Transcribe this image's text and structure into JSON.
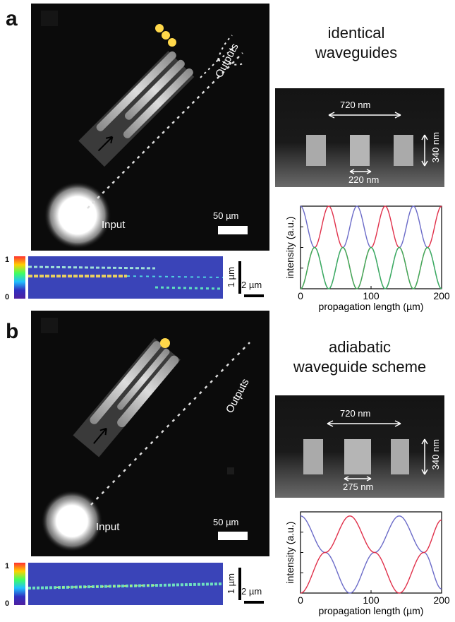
{
  "panel_a": {
    "letter": "a",
    "title_line1": "identical",
    "title_line2": "waveguides",
    "input_label": "Input",
    "outputs_label": "Outputs",
    "scale_micro": "50 µm",
    "sem_width": "720 nm",
    "sem_height": "340 nm",
    "sem_gap": "220 nm",
    "colorbar_max": "1",
    "colorbar_min": "0",
    "heat_scale_v": "1 µm",
    "heat_scale_h": "2 µm"
  },
  "panel_b": {
    "letter": "b",
    "title_line1": "adiabatic",
    "title_line2": "waveguide scheme",
    "input_label": "Input",
    "outputs_label": "Outputs",
    "scale_micro": "50 µm",
    "sem_width": "720 nm",
    "sem_height": "340 nm",
    "sem_gap": "275 nm",
    "colorbar_max": "1",
    "colorbar_min": "0",
    "heat_scale_v": "1 µm",
    "heat_scale_h": "2 µm"
  },
  "colors": {
    "blue": "#6b6bc8",
    "red": "#e0304a",
    "green": "#39b05a"
  },
  "chart_data": [
    {
      "type": "line",
      "xlabel": "propagation length (µm)",
      "ylabel": "intensity (a.u.)",
      "xlim": [
        0,
        200
      ],
      "ylim": [
        0,
        1
      ],
      "xticks": [
        "0",
        "100",
        "200"
      ],
      "series": [
        {
          "color": "blue",
          "x": [
            0,
            20,
            40,
            60,
            80,
            100,
            120,
            140,
            160,
            180,
            200
          ],
          "y": [
            1.0,
            0.5,
            0.0,
            0.5,
            1.0,
            0.5,
            0.0,
            0.5,
            1.0,
            0.5,
            0.0
          ]
        },
        {
          "color": "red",
          "x": [
            0,
            20,
            40,
            60,
            80,
            100,
            120,
            140,
            160,
            180,
            200
          ],
          "y": [
            0.0,
            0.5,
            1.0,
            0.5,
            0.0,
            0.5,
            1.0,
            0.5,
            0.0,
            0.5,
            1.0
          ]
        },
        {
          "color": "green",
          "x": [
            0,
            20,
            40,
            60,
            80,
            100,
            120,
            140,
            160,
            180,
            200
          ],
          "y": [
            0.0,
            0.5,
            0.0,
            0.5,
            0.0,
            0.5,
            0.0,
            0.5,
            0.0,
            0.5,
            0.0
          ]
        }
      ]
    },
    {
      "type": "line",
      "xlabel": "propagation length (µm)",
      "ylabel": "intensity (a.u.)",
      "xlim": [
        0,
        200
      ],
      "ylim": [
        0,
        1
      ],
      "xticks": [
        "0",
        "100",
        "200"
      ],
      "series": [
        {
          "color": "blue",
          "x": [
            0,
            35,
            70,
            105,
            140,
            175,
            200
          ],
          "y": [
            0.95,
            0.5,
            0.0,
            0.5,
            0.95,
            0.5,
            0.05
          ]
        },
        {
          "color": "red",
          "x": [
            0,
            35,
            70,
            105,
            140,
            175,
            200
          ],
          "y": [
            0.0,
            0.5,
            0.95,
            0.5,
            0.0,
            0.5,
            0.9
          ]
        }
      ]
    }
  ]
}
